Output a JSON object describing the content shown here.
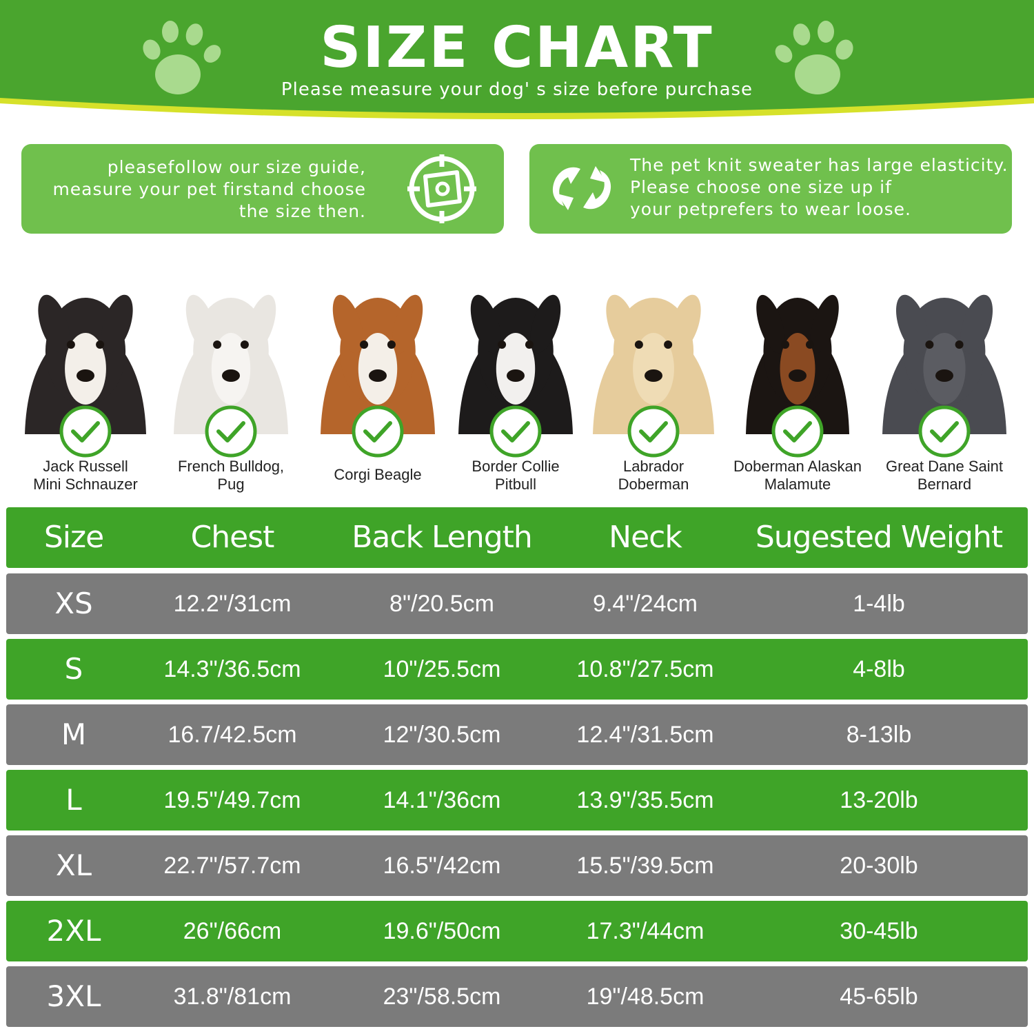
{
  "header": {
    "title": "SIZE CHART",
    "subtitle": "Please measure your dog' s size before purchase",
    "accent_green": "#4aa52e",
    "accent_yellow": "#d6e12a",
    "paw_icon": "paw-icon"
  },
  "info": {
    "left": {
      "lines": [
        "pleasefollow our size guide,",
        "measure your pet firstand choose",
        "the size then."
      ],
      "icon": "measure-target-icon"
    },
    "right": {
      "lines": [
        "The pet knit sweater has large elasticity.",
        "Please choose one size up if",
        "your petprefers to wear loose."
      ],
      "icon": "stretch-arrows-icon"
    },
    "box_color": "#70c04d"
  },
  "dogs": [
    {
      "line1": "Jack Russell",
      "line2": "Mini Schnauzer",
      "coat": "#2b2626",
      "face": "#f3efe9"
    },
    {
      "line1": "French Bulldog,",
      "line2": "Pug",
      "coat": "#e9e6e1",
      "face": "#f6f4f1"
    },
    {
      "line1": "Corgi Beagle",
      "line2": "",
      "coat": "#b5652b",
      "face": "#f4efe8"
    },
    {
      "line1": "Border Collie",
      "line2": "Pitbull",
      "coat": "#1d1b1b",
      "face": "#f2f0ee"
    },
    {
      "line1": "Labrador",
      "line2": "Doberman",
      "coat": "#e6cc9c",
      "face": "#efdcb5"
    },
    {
      "line1": "Doberman Alaskan",
      "line2": "Malamute",
      "coat": "#1b1512",
      "face": "#8a4a22"
    },
    {
      "line1": "Great Dane Saint",
      "line2": "Bernard",
      "coat": "#4a4b51",
      "face": "#5b5c62"
    }
  ],
  "check_icon": "check-circle-icon",
  "table": {
    "headers": [
      "Size",
      "Chest",
      "Back Length",
      "Neck",
      "Sugested Weight"
    ],
    "rows": [
      [
        "XS",
        "12.2\"/31cm",
        "8\"/20.5cm",
        "9.4\"/24cm",
        "1-4lb"
      ],
      [
        "S",
        "14.3\"/36.5cm",
        "10\"/25.5cm",
        "10.8\"/27.5cm",
        "4-8lb"
      ],
      [
        "M",
        "16.7/42.5cm",
        "12\"/30.5cm",
        "12.4\"/31.5cm",
        "8-13lb"
      ],
      [
        "L",
        "19.5\"/49.7cm",
        "14.1\"/36cm",
        "13.9\"/35.5cm",
        "13-20lb"
      ],
      [
        "XL",
        "22.7\"/57.7cm",
        "16.5\"/42cm",
        "15.5\"/39.5cm",
        "20-30lb"
      ],
      [
        "2XL",
        "26\"/66cm",
        "19.6\"/50cm",
        "17.3\"/44cm",
        "30-45lb"
      ],
      [
        "3XL",
        "31.8\"/81cm",
        "23\"/58.5cm",
        "19\"/48.5cm",
        "45-65lb"
      ]
    ],
    "row_colors": [
      "#7b7b7b",
      "#3fa428"
    ],
    "header_color": "#3fa428"
  }
}
